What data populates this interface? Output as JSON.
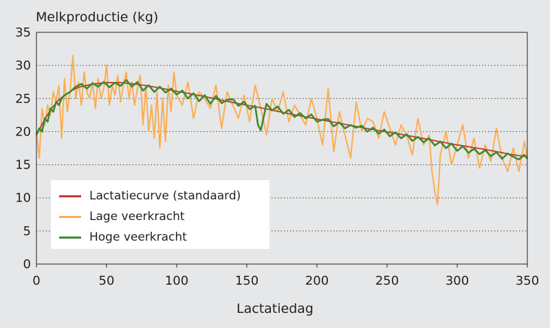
{
  "chart_data": {
    "type": "line",
    "ylabel": "Melkproductie (kg)",
    "xlabel": "Lactatiedag",
    "xlim": [
      0,
      350
    ],
    "ylim": [
      0,
      35
    ],
    "xticks": [
      0,
      50,
      100,
      150,
      200,
      250,
      300,
      350
    ],
    "yticks": [
      0,
      5,
      10,
      15,
      20,
      25,
      30,
      35
    ],
    "grid": "horizontal dotted",
    "legend_position": "lower-left",
    "series": [
      {
        "name": "Lactatiecurve (standaard)",
        "color": "#c0392b",
        "x": [
          0,
          5,
          10,
          15,
          20,
          25,
          30,
          40,
          50,
          60,
          70,
          80,
          90,
          100,
          120,
          140,
          160,
          180,
          200,
          220,
          240,
          260,
          280,
          300,
          320,
          340,
          350
        ],
        "y": [
          19.5,
          21.5,
          23.3,
          24.6,
          25.5,
          26.2,
          26.7,
          27.2,
          27.4,
          27.4,
          27.2,
          26.9,
          26.5,
          26.1,
          25.3,
          24.4,
          23.6,
          22.7,
          21.9,
          21.1,
          20.3,
          19.6,
          18.8,
          18.0,
          17.3,
          16.5,
          16.2
        ]
      },
      {
        "name": "Lage veerkracht",
        "color": "#fbad52",
        "x": [
          0,
          2,
          4,
          6,
          8,
          10,
          12,
          14,
          16,
          18,
          20,
          22,
          24,
          26,
          28,
          30,
          32,
          34,
          36,
          38,
          40,
          42,
          44,
          46,
          48,
          50,
          52,
          54,
          56,
          58,
          60,
          62,
          64,
          66,
          68,
          70,
          72,
          74,
          76,
          78,
          80,
          82,
          84,
          86,
          88,
          90,
          92,
          94,
          96,
          98,
          100,
          104,
          108,
          112,
          116,
          120,
          124,
          128,
          132,
          136,
          140,
          144,
          148,
          152,
          156,
          160,
          164,
          168,
          172,
          176,
          180,
          184,
          188,
          192,
          196,
          200,
          204,
          208,
          212,
          216,
          220,
          224,
          228,
          232,
          236,
          240,
          244,
          248,
          252,
          256,
          260,
          264,
          268,
          272,
          276,
          280,
          282,
          284,
          286,
          288,
          292,
          296,
          300,
          304,
          308,
          312,
          316,
          320,
          324,
          328,
          332,
          336,
          340,
          344,
          348,
          350
        ],
        "y": [
          20,
          16,
          23.5,
          21,
          24,
          22.5,
          26,
          24.5,
          27,
          19,
          28,
          23,
          26,
          31.5,
          25,
          27.5,
          24,
          29,
          26,
          25,
          27.5,
          23.5,
          28,
          25,
          26.5,
          30,
          24,
          27,
          25.5,
          28.5,
          24.5,
          27,
          29,
          25,
          27.5,
          24,
          26.5,
          28.5,
          21,
          27,
          20,
          24,
          19,
          26,
          17.5,
          25,
          18.5,
          27,
          23,
          29,
          25.5,
          24,
          27.5,
          22,
          26,
          25,
          23.5,
          27,
          20.5,
          26,
          24,
          22,
          25.5,
          21.5,
          27,
          23.5,
          19.5,
          25,
          23,
          26,
          21.5,
          24,
          22.5,
          21,
          25,
          22,
          18,
          26.5,
          17,
          23,
          19.5,
          16,
          24.5,
          20,
          22,
          21.5,
          19,
          23,
          20.5,
          18,
          21,
          19.5,
          16.5,
          22,
          18,
          19.5,
          14,
          11,
          9,
          16.5,
          20,
          15,
          18,
          21,
          16,
          19,
          14.5,
          18,
          15.5,
          20.5,
          16,
          14,
          17.5,
          14,
          18.5,
          16
        ]
      },
      {
        "name": "Hoge veerkracht",
        "color": "#3c8a2e",
        "x": [
          0,
          2,
          4,
          6,
          8,
          10,
          12,
          14,
          16,
          18,
          20,
          24,
          28,
          32,
          36,
          40,
          44,
          48,
          52,
          56,
          60,
          64,
          68,
          72,
          76,
          80,
          84,
          88,
          92,
          96,
          100,
          104,
          108,
          112,
          116,
          120,
          124,
          128,
          132,
          136,
          140,
          144,
          148,
          152,
          156,
          158,
          160,
          164,
          168,
          172,
          176,
          180,
          184,
          188,
          192,
          196,
          200,
          204,
          208,
          212,
          216,
          220,
          224,
          228,
          232,
          236,
          240,
          244,
          248,
          252,
          256,
          260,
          264,
          268,
          272,
          276,
          280,
          284,
          288,
          292,
          296,
          300,
          304,
          308,
          312,
          316,
          320,
          324,
          328,
          332,
          336,
          340,
          344,
          348,
          350
        ],
        "y": [
          19.5,
          20.5,
          20,
          22,
          21.5,
          23.5,
          23,
          24.5,
          24,
          25,
          25.5,
          26,
          26.8,
          27.2,
          26.5,
          27.3,
          26.8,
          27.5,
          26.7,
          27.4,
          26.9,
          27.8,
          26.8,
          27.5,
          26.2,
          27,
          26,
          26.8,
          25.9,
          26.5,
          25.6,
          26.2,
          25,
          25.8,
          24.6,
          25.5,
          24.2,
          25.4,
          24.3,
          24.8,
          24.9,
          23.9,
          24.5,
          23.4,
          23.9,
          21,
          20.2,
          24.2,
          23.2,
          23.8,
          22.7,
          23.3,
          22.2,
          22.8,
          22.0,
          22.6,
          21.5,
          21.8,
          21.9,
          20.8,
          21.4,
          20.5,
          21.0,
          20.6,
          20.9,
          20.0,
          20.6,
          19.7,
          20.3,
          19.3,
          19.9,
          19.0,
          19.6,
          18.6,
          19.2,
          18.4,
          19.0,
          17.9,
          18.5,
          17.5,
          18.2,
          17.1,
          17.8,
          16.8,
          17.4,
          16.6,
          17.2,
          16.3,
          16.9,
          15.9,
          16.7,
          16.2,
          15.8,
          16.5,
          15.9
        ]
      }
    ]
  }
}
